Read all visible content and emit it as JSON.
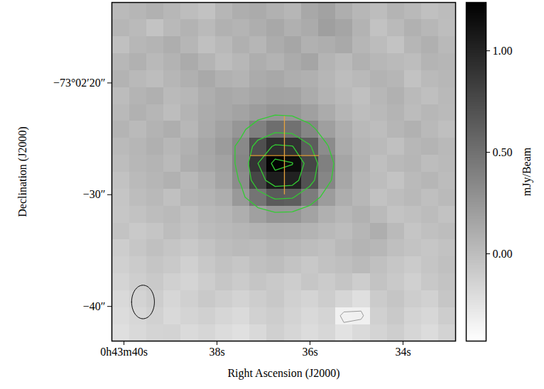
{
  "chart_data": {
    "type": "heatmap",
    "xlabel": "Right Ascension (J2000)",
    "ylabel": "Declination (J2000)",
    "xlim": [
      40.26,
      32.87
    ],
    "ylim": [
      -43.1,
      -12.8
    ],
    "xticks": [
      {
        "value": 40,
        "label": "0h43m40s"
      },
      {
        "value": 38,
        "label": "38s"
      },
      {
        "value": 36,
        "label": "36s"
      },
      {
        "value": 34,
        "label": "34s"
      }
    ],
    "yticks": [
      {
        "value": -20,
        "label": "−73°02′20″"
      },
      {
        "value": -30,
        "label": "−30″"
      },
      {
        "value": -40,
        "label": "−40″"
      }
    ],
    "cells": [
      [
        0.02,
        0.05,
        0.08,
        0.04,
        0.0,
        -0.03,
        0.05,
        0.1,
        0.12,
        0.08,
        0.05,
        0.14,
        0.18,
        0.1,
        0.04,
        0.0,
        0.06,
        0.03,
        -0.02,
        0.01
      ],
      [
        0.05,
        0.02,
        -0.04,
        0.03,
        0.07,
        0.02,
        0.08,
        0.06,
        0.1,
        0.14,
        0.09,
        0.12,
        0.2,
        0.16,
        0.07,
        -0.03,
        0.02,
        0.08,
        0.04,
        0.0
      ],
      [
        -0.02,
        0.04,
        0.06,
        0.1,
        0.05,
        -0.02,
        0.03,
        0.09,
        0.05,
        0.11,
        0.15,
        0.08,
        0.1,
        0.13,
        0.05,
        0.01,
        -0.04,
        0.05,
        0.09,
        0.03
      ],
      [
        0.04,
        0.08,
        0.03,
        0.07,
        0.12,
        0.06,
        0.0,
        0.04,
        0.1,
        0.07,
        0.12,
        0.16,
        0.06,
        0.02,
        0.08,
        0.04,
        0.02,
        0.0,
        0.06,
        0.05
      ],
      [
        0.07,
        0.03,
        0.0,
        0.05,
        0.09,
        0.13,
        0.08,
        0.06,
        0.12,
        0.14,
        0.1,
        0.09,
        0.05,
        0.0,
        0.03,
        0.07,
        0.05,
        -0.03,
        0.02,
        0.04
      ],
      [
        0.01,
        0.06,
        0.09,
        0.02,
        0.04,
        0.1,
        0.14,
        0.12,
        0.15,
        0.18,
        0.17,
        0.11,
        0.06,
        0.02,
        -0.02,
        0.04,
        0.08,
        0.02,
        -0.01,
        0.03
      ],
      [
        0.03,
        0.08,
        0.05,
        0.0,
        0.06,
        0.11,
        0.14,
        0.17,
        0.22,
        0.26,
        0.25,
        0.19,
        0.12,
        0.05,
        0.0,
        0.03,
        0.06,
        0.01,
        0.04,
        0.02
      ],
      [
        0.06,
        0.02,
        0.07,
        0.1,
        0.04,
        0.12,
        0.18,
        0.26,
        0.4,
        0.52,
        0.5,
        0.36,
        0.2,
        0.1,
        0.03,
        0.0,
        0.05,
        0.08,
        0.03,
        -0.01
      ],
      [
        0.02,
        0.05,
        0.09,
        0.04,
        0.08,
        0.15,
        0.22,
        0.34,
        0.72,
        0.94,
        0.91,
        0.63,
        0.32,
        0.12,
        0.05,
        0.02,
        -0.02,
        0.04,
        0.06,
        0.03
      ],
      [
        0.0,
        0.04,
        0.06,
        0.02,
        0.1,
        0.14,
        0.18,
        0.36,
        0.9,
        1.22,
        1.16,
        0.78,
        0.4,
        0.16,
        0.06,
        -0.01,
        0.03,
        0.05,
        0.0,
        0.02
      ],
      [
        -0.03,
        0.02,
        0.05,
        0.08,
        0.03,
        0.09,
        0.16,
        0.32,
        0.78,
        1.05,
        1.02,
        0.7,
        0.36,
        0.14,
        0.04,
        0.0,
        -0.04,
        0.02,
        0.05,
        0.01
      ],
      [
        -0.05,
        0.0,
        0.03,
        -0.02,
        0.04,
        0.06,
        0.1,
        0.24,
        0.48,
        0.64,
        0.62,
        0.43,
        0.22,
        0.1,
        0.04,
        -0.03,
        0.0,
        0.03,
        -0.01,
        0.02
      ],
      [
        -0.06,
        -0.03,
        0.0,
        0.02,
        -0.02,
        0.03,
        0.05,
        0.1,
        0.19,
        0.26,
        0.25,
        0.17,
        0.09,
        0.04,
        0.08,
        0.02,
        -0.04,
        -0.02,
        0.01,
        -0.03
      ],
      [
        -0.04,
        -0.08,
        -0.05,
        0.0,
        -0.03,
        0.01,
        0.03,
        0.05,
        0.07,
        0.09,
        0.08,
        0.06,
        0.03,
        0.0,
        0.05,
        0.1,
        0.02,
        -0.05,
        -0.02,
        0.0
      ],
      [
        -0.1,
        -0.06,
        -0.02,
        -0.05,
        -0.08,
        -0.04,
        0.0,
        0.02,
        0.01,
        0.04,
        0.02,
        0.0,
        -0.02,
        0.03,
        0.06,
        0.04,
        -0.01,
        -0.04,
        -0.06,
        -0.03
      ],
      [
        -0.12,
        -0.09,
        -0.05,
        -0.08,
        -0.12,
        -0.07,
        -0.03,
        -0.06,
        -0.02,
        0.0,
        -0.04,
        -0.07,
        -0.03,
        -0.01,
        0.02,
        -0.02,
        -0.06,
        -0.09,
        -0.05,
        -0.02
      ],
      [
        -0.15,
        -0.11,
        -0.08,
        -0.12,
        -0.15,
        -0.1,
        -0.06,
        -0.09,
        -0.05,
        -0.08,
        -0.1,
        -0.06,
        -0.09,
        -0.05,
        -0.1,
        -0.04,
        -0.08,
        -0.12,
        -0.07,
        -0.04
      ],
      [
        -0.18,
        -0.14,
        -0.1,
        -0.16,
        -0.12,
        -0.08,
        -0.11,
        -0.14,
        -0.1,
        -0.07,
        -0.12,
        -0.15,
        -0.1,
        -0.16,
        -0.22,
        -0.09,
        -0.05,
        -0.1,
        -0.13,
        -0.06
      ],
      [
        -0.2,
        -0.17,
        -0.13,
        -0.18,
        -0.15,
        -0.12,
        -0.16,
        -0.19,
        -0.13,
        -0.1,
        -0.14,
        -0.18,
        -0.15,
        -0.34,
        -0.33,
        -0.12,
        -0.08,
        -0.14,
        -0.17,
        -0.1
      ],
      [
        -0.22,
        -0.18,
        -0.15,
        -0.14,
        -0.19,
        -0.16,
        -0.2,
        -0.23,
        -0.18,
        -0.12,
        -0.16,
        -0.2,
        -0.17,
        -0.24,
        -0.19,
        -0.15,
        -0.11,
        -0.16,
        -0.2,
        -0.14
      ]
    ],
    "colorbar": {
      "label": "mJy/Beam",
      "range": [
        -0.43,
        1.238
      ],
      "ticks": [
        {
          "value": 0,
          "label": "0.00"
        },
        {
          "value": 0.5,
          "label": "0.50"
        },
        {
          "value": 1,
          "label": "1.00"
        }
      ],
      "colors": [
        "#ffffff",
        "#000000"
      ]
    },
    "contours": [
      {
        "levels": [
          0.3,
          0.6,
          0.9,
          1.15
        ],
        "color": "#33cc33"
      },
      {
        "levels": [
          -0.3
        ],
        "color": "#999999"
      }
    ],
    "cross": {
      "x": 36.55,
      "y": -26.5,
      "x_extent": [
        37.28,
        35.8
      ],
      "y_extent": [
        -23.0,
        -30.0
      ],
      "color": "#e8a33c"
    },
    "beam": {
      "x": 39.59,
      "y": -39.6,
      "width": 0.49,
      "height": 3.0,
      "color": "#000000"
    }
  }
}
